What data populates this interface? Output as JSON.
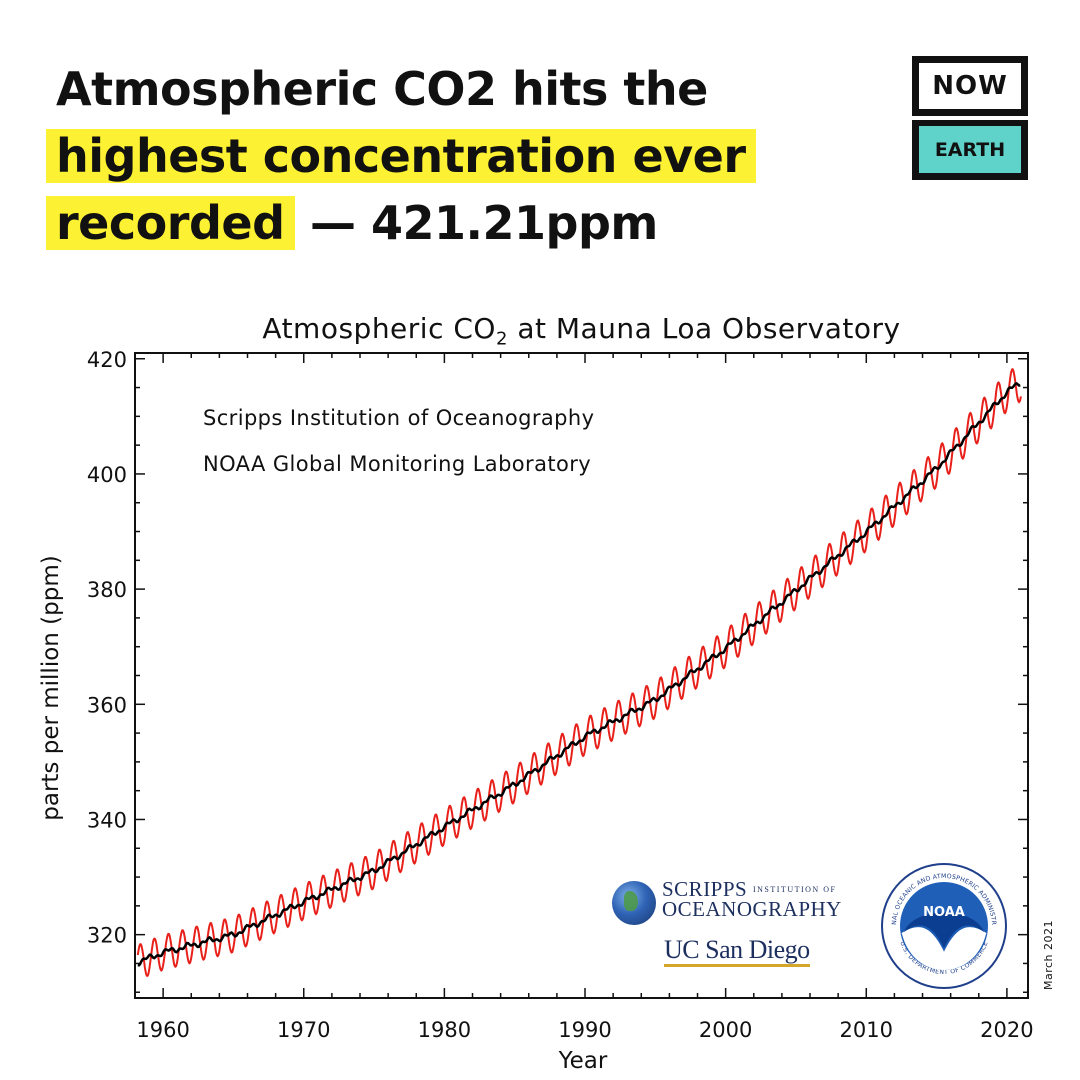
{
  "headline": {
    "line1": "Atmospheric CO2 hits the",
    "line2_highlight": "highest concentration ever",
    "line3_highlight": "recorded",
    "line3_rest": " — 421.21ppm",
    "highlight_color": "#fdf133"
  },
  "brand": {
    "top": "NOW",
    "bottom": "EARTH",
    "accent_color": "#5fd3c9"
  },
  "chart_data": {
    "type": "line",
    "title_main": "Atmospheric CO",
    "title_sub": "2",
    "title_rest": " at Mauna Loa Observatory",
    "xlabel": "Year",
    "ylabel": "parts per million (ppm)",
    "xlim": [
      1958,
      2021.5
    ],
    "ylim": [
      309,
      421
    ],
    "xticks": [
      1960,
      1970,
      1980,
      1990,
      2000,
      2010,
      2020
    ],
    "yticks": [
      320,
      340,
      360,
      380,
      400,
      420
    ],
    "annotations": [
      "Scripps Institution of Oceanography",
      "NOAA Global Monitoring Laboratory"
    ],
    "grid": false,
    "series": [
      {
        "color": "#e8201a",
        "style": "monthly",
        "seasonal_amplitude_ppm": [
          3.0,
          3.3
        ]
      },
      {
        "color": "#000000",
        "style": "trend",
        "x": [
          1958,
          1960,
          1965,
          1970,
          1975,
          1980,
          1985,
          1990,
          1995,
          2000,
          2005,
          2010,
          2015,
          2020,
          2021
        ],
        "values": [
          315.0,
          316.9,
          320.0,
          325.7,
          331.1,
          338.7,
          346.1,
          354.4,
          360.8,
          369.7,
          379.8,
          389.9,
          401.0,
          414.2,
          416.0
        ]
      }
    ]
  },
  "logos": {
    "scripps_line1": "SCRIPPS",
    "scripps_line1_small": "INSTITUTION OF",
    "scripps_line2": "OCEANOGRAPHY",
    "ucsd": "UC San Diego",
    "noaa": "NOAA",
    "noaa_ring_top": "NATIONAL OCEANIC AND ATMOSPHERIC ADMINISTRATION",
    "noaa_ring_bottom": "U.S. DEPARTMENT OF COMMERCE",
    "date_stamp": "March 2021"
  }
}
